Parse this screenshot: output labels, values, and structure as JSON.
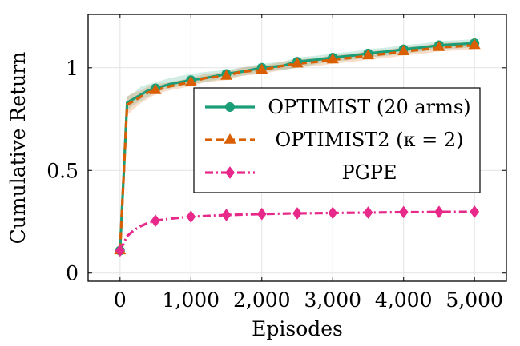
{
  "chart_data": {
    "type": "line",
    "title": "",
    "xlabel": "Episodes",
    "ylabel": "Cumulative Return",
    "xlim": [
      -450,
      5450
    ],
    "ylim": [
      -0.04,
      1.26
    ],
    "xticks": [
      0,
      1000,
      2000,
      3000,
      4000,
      5000
    ],
    "xtick_labels": [
      "0",
      "1,000",
      "2,000",
      "3,000",
      "4,000",
      "5,000"
    ],
    "yticks": [
      0,
      0.5,
      1
    ],
    "ytick_labels": [
      "0",
      "0.5",
      "1"
    ],
    "grid": true,
    "legend_position": "center-right",
    "series": [
      {
        "name": "OPTIMIST (20 arms)",
        "color": "#1b9e77",
        "style": "solid",
        "marker": "circle",
        "x": [
          0,
          100,
          200,
          300,
          400,
          500,
          700,
          1000,
          1200,
          1500,
          1700,
          2000,
          2300,
          2500,
          2800,
          3000,
          3300,
          3500,
          3800,
          4000,
          4300,
          4500,
          4800,
          5000
        ],
        "y": [
          0.11,
          0.83,
          0.85,
          0.87,
          0.89,
          0.9,
          0.92,
          0.94,
          0.95,
          0.97,
          0.98,
          1.0,
          1.01,
          1.03,
          1.04,
          1.05,
          1.06,
          1.07,
          1.08,
          1.09,
          1.1,
          1.11,
          1.115,
          1.12
        ],
        "marker_x": [
          0,
          500,
          1000,
          1500,
          2000,
          2500,
          3000,
          3500,
          4000,
          4500,
          5000
        ],
        "band_lower": [
          0.1,
          0.79,
          0.82,
          0.84,
          0.86,
          0.88,
          0.9,
          0.92,
          0.93,
          0.95,
          0.96,
          0.98,
          0.99,
          1.0,
          1.02,
          1.03,
          1.04,
          1.05,
          1.06,
          1.07,
          1.08,
          1.09,
          1.095,
          1.1
        ],
        "band_upper": [
          0.12,
          0.86,
          0.88,
          0.91,
          0.92,
          0.93,
          0.95,
          0.97,
          0.98,
          0.99,
          1.0,
          1.02,
          1.03,
          1.05,
          1.06,
          1.07,
          1.08,
          1.09,
          1.1,
          1.11,
          1.12,
          1.13,
          1.135,
          1.14
        ]
      },
      {
        "name": "OPTIMIST2 (κ = 2)",
        "color": "#d95f02",
        "style": "dashed",
        "marker": "triangle",
        "x": [
          0,
          100,
          200,
          300,
          400,
          500,
          700,
          1000,
          1200,
          1500,
          1700,
          2000,
          2300,
          2500,
          2800,
          3000,
          3300,
          3500,
          3800,
          4000,
          4300,
          4500,
          4800,
          5000
        ],
        "y": [
          0.11,
          0.82,
          0.84,
          0.86,
          0.88,
          0.89,
          0.91,
          0.93,
          0.95,
          0.96,
          0.98,
          0.99,
          1.01,
          1.02,
          1.03,
          1.04,
          1.05,
          1.06,
          1.07,
          1.08,
          1.09,
          1.1,
          1.105,
          1.11
        ],
        "marker_x": [
          0,
          500,
          1000,
          1500,
          2000,
          2500,
          3000,
          3500,
          4000,
          4500,
          5000
        ],
        "band_lower": [
          0.1,
          0.77,
          0.8,
          0.83,
          0.85,
          0.87,
          0.89,
          0.91,
          0.93,
          0.94,
          0.96,
          0.97,
          0.99,
          1.0,
          1.01,
          1.02,
          1.03,
          1.04,
          1.05,
          1.06,
          1.07,
          1.08,
          1.085,
          1.09
        ],
        "band_upper": [
          0.12,
          0.86,
          0.88,
          0.89,
          0.91,
          0.92,
          0.93,
          0.95,
          0.97,
          0.98,
          1.0,
          1.01,
          1.03,
          1.04,
          1.05,
          1.06,
          1.07,
          1.08,
          1.09,
          1.1,
          1.11,
          1.12,
          1.125,
          1.13
        ]
      },
      {
        "name": "PGPE",
        "color": "#e7298a",
        "style": "dash-dot",
        "marker": "diamond",
        "x": [
          0,
          100,
          200,
          300,
          400,
          500,
          700,
          1000,
          1200,
          1500,
          1700,
          2000,
          2300,
          2500,
          2800,
          3000,
          3300,
          3500,
          3800,
          4000,
          4300,
          4500,
          4800,
          5000
        ],
        "y": [
          0.11,
          0.18,
          0.21,
          0.23,
          0.245,
          0.255,
          0.265,
          0.275,
          0.278,
          0.283,
          0.285,
          0.288,
          0.29,
          0.291,
          0.292,
          0.293,
          0.294,
          0.295,
          0.296,
          0.297,
          0.297,
          0.298,
          0.298,
          0.299
        ],
        "marker_x": [
          0,
          500,
          1000,
          1500,
          2000,
          2500,
          3000,
          3500,
          4000,
          4500,
          5000
        ]
      }
    ],
    "legend": {
      "entries": [
        "OPTIMIST (20 arms)",
        "OPTIMIST2 (κ = 2)",
        "PGPE"
      ]
    }
  }
}
